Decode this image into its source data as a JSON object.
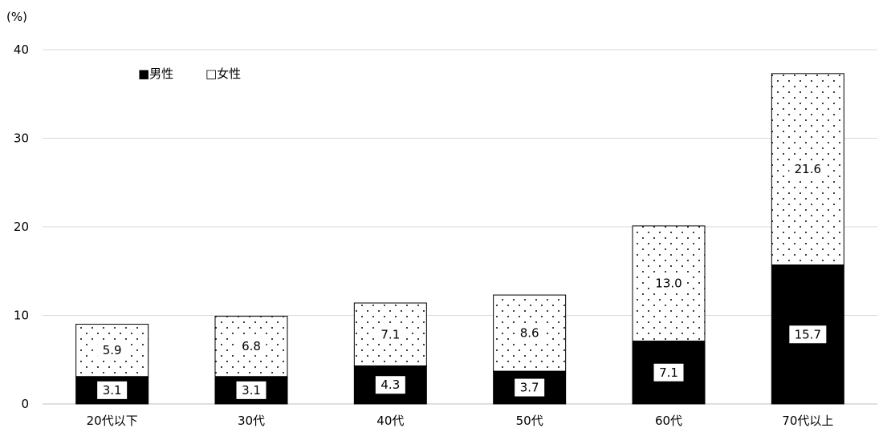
{
  "chart_data": {
    "type": "bar",
    "stacked": true,
    "ylabel": "(%)",
    "ylim": [
      0,
      40
    ],
    "yticks": [
      0,
      10,
      20,
      30,
      40
    ],
    "grid": true,
    "legend_position": "top-left",
    "categories": [
      "20代以下",
      "30代",
      "40代",
      "50代",
      "60代",
      "70代以上"
    ],
    "series": [
      {
        "name": "男性",
        "legend_label": "■男性",
        "pattern": "solid",
        "color": "#000000",
        "values": [
          3.1,
          3.1,
          4.3,
          3.7,
          7.1,
          15.7
        ],
        "labels": [
          "3.1",
          "3.1",
          "4.3",
          "3.7",
          "7.1",
          "15.7"
        ]
      },
      {
        "name": "女性",
        "legend_label": "□女性",
        "pattern": "dots",
        "color": "#ffffff",
        "values": [
          5.9,
          6.8,
          7.1,
          8.6,
          13.0,
          21.6
        ],
        "labels": [
          "5.9",
          "6.8",
          "7.1",
          "8.6",
          "13.0",
          "21.6"
        ]
      }
    ]
  }
}
